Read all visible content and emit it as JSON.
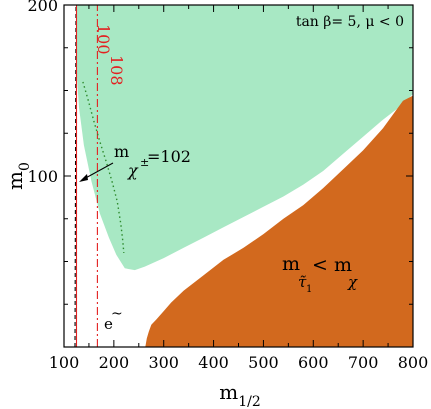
{
  "chart_data": {
    "type": "area",
    "xlabel": {
      "base": "m",
      "sub": "1/2"
    },
    "ylabel": {
      "base": "m",
      "sub": "0"
    },
    "xlim": [
      100,
      800
    ],
    "ylim": [
      0,
      200
    ],
    "x_ticks": [
      100,
      200,
      300,
      400,
      500,
      600,
      700,
      800
    ],
    "y_ticks": [
      100,
      200
    ],
    "annotation_title": "tan  β= 5,  μ < 0",
    "colors": {
      "green_region": "#a8e8c4",
      "orange_region": "#d2691e",
      "red_lines": "#e32020",
      "dotted_green": "#2e8b2e",
      "axis": "#000000"
    },
    "regions": [
      {
        "name": "green-region",
        "points": [
          [
            125,
            200
          ],
          [
            800,
            200
          ],
          [
            800,
            148
          ],
          [
            780,
            142
          ],
          [
            740,
            133
          ],
          [
            700,
            123
          ],
          [
            660,
            113
          ],
          [
            620,
            103
          ],
          [
            580,
            95
          ],
          [
            540,
            88
          ],
          [
            500,
            82
          ],
          [
            460,
            76
          ],
          [
            420,
            70
          ],
          [
            380,
            64
          ],
          [
            340,
            58
          ],
          [
            300,
            52
          ],
          [
            262,
            47
          ],
          [
            242,
            45
          ],
          [
            222,
            46
          ],
          [
            205,
            54
          ],
          [
            190,
            64
          ],
          [
            172,
            78
          ],
          [
            155,
            97
          ],
          [
            140,
            118
          ],
          [
            130,
            140
          ],
          [
            125,
            162
          ]
        ]
      },
      {
        "name": "orange-region",
        "label": {
          "base": "m",
          "base_sub": "τ̃",
          "sub_index": "1",
          "lt": "< m",
          "chi": "χ"
        },
        "points": [
          [
            800,
            0
          ],
          [
            800,
            147
          ],
          [
            780,
            144
          ],
          [
            740,
            128
          ],
          [
            700,
            115
          ],
          [
            660,
            104
          ],
          [
            620,
            93
          ],
          [
            580,
            83
          ],
          [
            540,
            75
          ],
          [
            500,
            66
          ],
          [
            460,
            58
          ],
          [
            420,
            51
          ],
          [
            380,
            42
          ],
          [
            340,
            33
          ],
          [
            315,
            26
          ],
          [
            300,
            21
          ],
          [
            285,
            16
          ],
          [
            275,
            13
          ],
          [
            270,
            9
          ],
          [
            266,
            5
          ],
          [
            263,
            0
          ]
        ]
      }
    ],
    "lines": [
      {
        "name": "chargino-102-line",
        "style": "dashed",
        "color": "#000000",
        "points": [
          [
            122,
            0
          ],
          [
            124,
            200
          ]
        ]
      },
      {
        "name": "chargino-100-line",
        "style": "solid",
        "color": "#e32020",
        "points": [
          [
            125,
            0
          ],
          [
            125,
            200
          ]
        ]
      },
      {
        "name": "chargino-108-line",
        "style": "dashdot",
        "color": "#e32020",
        "points": [
          [
            167,
            0
          ],
          [
            167,
            200
          ]
        ]
      },
      {
        "name": "selectron-dotted-line",
        "style": "dotted",
        "color": "#2e8b2e",
        "points": [
          [
            138,
            155
          ],
          [
            148,
            145
          ],
          [
            160,
            132
          ],
          [
            172,
            120
          ],
          [
            185,
            108
          ],
          [
            197,
            96
          ],
          [
            207,
            85
          ],
          [
            214,
            72
          ],
          [
            218,
            62
          ],
          [
            220,
            55
          ]
        ]
      }
    ],
    "labels": {
      "line_100": "100",
      "line_108": "108",
      "chargino_label": {
        "base": "m",
        "sub": "χ",
        "sup": "±",
        "value": "=102"
      },
      "selectron_label": {
        "base": "e",
        "tilde": "~"
      }
    }
  }
}
